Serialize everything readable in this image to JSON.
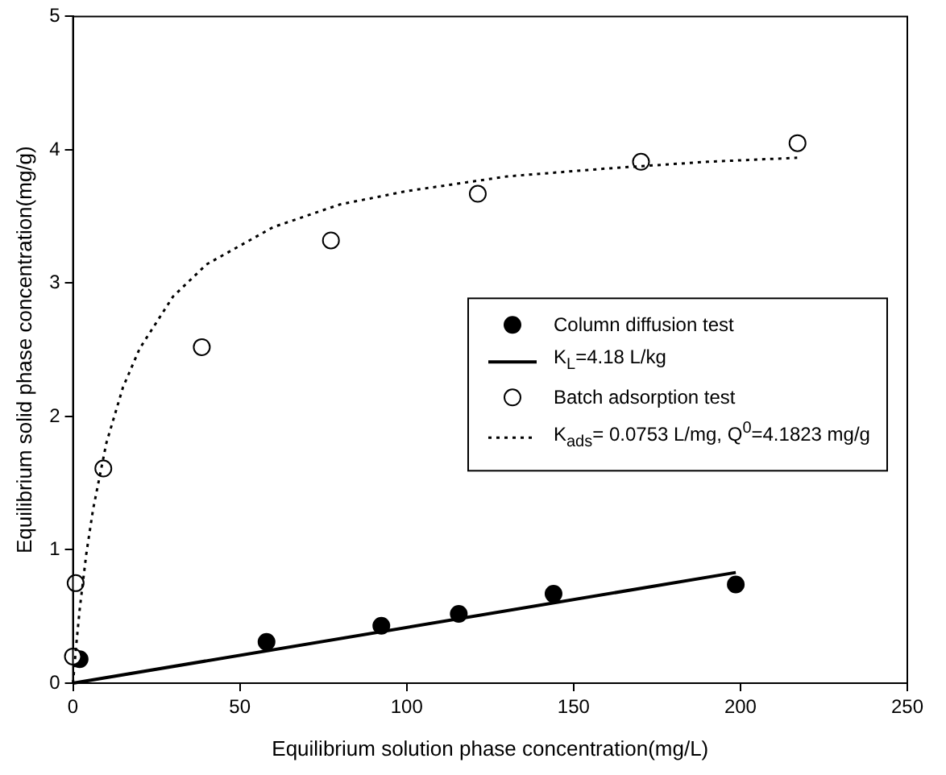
{
  "chart_data": {
    "type": "scatter",
    "xlabel": "Equilibrium solution phase concentration(mg/L)",
    "ylabel": "Equilibrium solid phase concentration(mg/g)",
    "xlim": [
      0,
      250
    ],
    "xticks": [
      0,
      50,
      100,
      150,
      200,
      250
    ],
    "ylim": [
      0,
      5
    ],
    "yticks": [
      0,
      1,
      2,
      3,
      4,
      5
    ],
    "grid": false,
    "legend": "right",
    "series": [
      {
        "name": "Column diffusion test",
        "type": "scatter",
        "marker": "circle",
        "color": "#000000",
        "x": [
          2,
          58,
          92.4,
          115.6,
          144,
          198.6
        ],
        "values": [
          0.18,
          0.31,
          0.43,
          0.52,
          0.67,
          0.74
        ]
      },
      {
        "name": "K$_{L}$=4.18 L/kg",
        "type": "line",
        "marker": "none",
        "line_style": "solid",
        "color": "#000000",
        "x": [
          0,
          198.6
        ],
        "values": [
          0,
          0.83
        ]
      },
      {
        "name": "Batch adsorption test",
        "type": "scatter",
        "marker": "circle",
        "color": "#ffffff",
        "x": [
          0,
          0.8,
          9.1,
          38.6,
          77.3,
          121.3,
          170.2,
          217.1
        ],
        "values": [
          0.2,
          0.75,
          1.61,
          2.52,
          3.32,
          3.67,
          3.91,
          4.05
        ]
      },
      {
        "name": "K$_{ads}$= 0.0753 L/mg, Q$^{0}$=4.1823 mg/g",
        "type": "line",
        "marker": "none",
        "line_style": "dotted",
        "color": "#000000",
        "x": [
          0,
          1,
          2,
          4,
          6,
          10,
          15,
          20,
          30,
          40,
          60,
          80,
          100,
          130,
          160,
          190,
          217
        ],
        "values": [
          0,
          0.29,
          0.55,
          0.97,
          1.3,
          1.8,
          2.22,
          2.51,
          2.9,
          3.14,
          3.42,
          3.59,
          3.69,
          3.8,
          3.86,
          3.91,
          3.94
        ]
      }
    ]
  }
}
